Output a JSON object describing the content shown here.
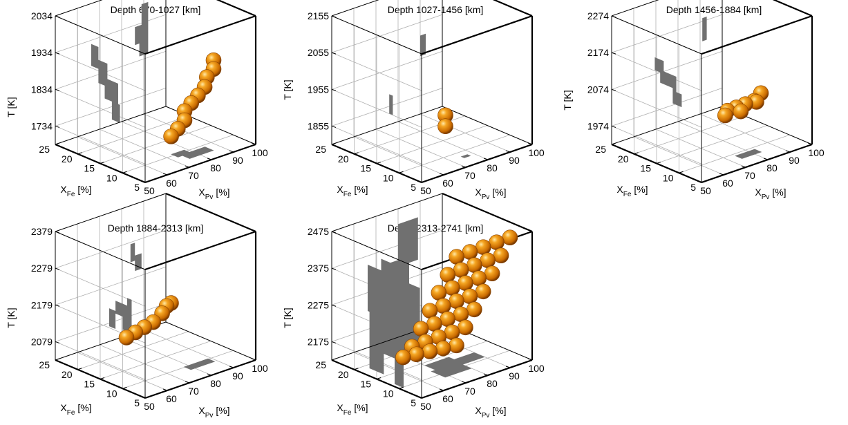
{
  "chart_data": [
    {
      "type": "scatter3d",
      "title": "Depth 670-1027 [km]",
      "zlabel": "T [K]",
      "ylabel": {
        "main": "X",
        "sub": "Fe",
        "unit": " [%]"
      },
      "xlabel": {
        "main": "X",
        "sub": "Pv",
        "unit": " [%]"
      },
      "xlim": [
        50,
        100
      ],
      "xticks": [
        50,
        60,
        70,
        80,
        90,
        100
      ],
      "ylim": [
        5,
        25
      ],
      "yticks": [
        5,
        10,
        15,
        20,
        25
      ],
      "zlim": [
        1684,
        2034
      ],
      "zticks": [
        1734,
        1834,
        1934,
        2034
      ],
      "grid": true,
      "marker_color": "#e08a10",
      "projection_color": "#707070",
      "points": [
        {
          "x": 85,
          "y": 7,
          "z": 1934
        },
        {
          "x": 85,
          "y": 7,
          "z": 1910
        },
        {
          "x": 84,
          "y": 8,
          "z": 1885
        },
        {
          "x": 83,
          "y": 8,
          "z": 1860
        },
        {
          "x": 82,
          "y": 9,
          "z": 1834
        },
        {
          "x": 81,
          "y": 10,
          "z": 1810
        },
        {
          "x": 80,
          "y": 11,
          "z": 1785
        },
        {
          "x": 80,
          "y": 11,
          "z": 1760
        },
        {
          "x": 79,
          "y": 12,
          "z": 1734
        },
        {
          "x": 78,
          "y": 13,
          "z": 1710
        }
      ]
    },
    {
      "type": "scatter3d",
      "title": "Depth 1027-1456 [km]",
      "zlabel": "T [K]",
      "ylabel": {
        "main": "X",
        "sub": "Fe",
        "unit": " [%]"
      },
      "xlabel": {
        "main": "X",
        "sub": "Pv",
        "unit": " [%]"
      },
      "xlim": [
        50,
        100
      ],
      "xticks": [
        50,
        60,
        70,
        80,
        90,
        100
      ],
      "ylim": [
        5,
        25
      ],
      "yticks": [
        5,
        10,
        15,
        20,
        25
      ],
      "zlim": [
        1805,
        2155
      ],
      "zticks": [
        1855,
        1955,
        2055,
        2155
      ],
      "grid": true,
      "marker_color": "#e08a10",
      "projection_color": "#707070",
      "points": [
        {
          "x": 75,
          "y": 12,
          "z": 1900
        },
        {
          "x": 75,
          "y": 12,
          "z": 1870
        }
      ]
    },
    {
      "type": "scatter3d",
      "title": "Depth 1456-1884 [km]",
      "zlabel": "T [K]",
      "ylabel": {
        "main": "X",
        "sub": "Fe",
        "unit": " [%]"
      },
      "xlabel": {
        "main": "X",
        "sub": "Pv",
        "unit": " [%]"
      },
      "xlim": [
        50,
        100
      ],
      "xticks": [
        50,
        60,
        70,
        80,
        90,
        100
      ],
      "ylim": [
        5,
        25
      ],
      "yticks": [
        5,
        10,
        15,
        20,
        25
      ],
      "zlim": [
        1924,
        2274
      ],
      "zticks": [
        1974,
        2074,
        2174,
        2274
      ],
      "grid": true,
      "marker_color": "#e08a10",
      "projection_color": "#707070",
      "points": [
        {
          "x": 85,
          "y": 9,
          "z": 2074
        },
        {
          "x": 84,
          "y": 10,
          "z": 2050
        },
        {
          "x": 82,
          "y": 11,
          "z": 2040
        },
        {
          "x": 80,
          "y": 12,
          "z": 2030
        },
        {
          "x": 78,
          "y": 13,
          "z": 2020
        },
        {
          "x": 85,
          "y": 10,
          "z": 2045
        },
        {
          "x": 82,
          "y": 12,
          "z": 2015
        },
        {
          "x": 79,
          "y": 14,
          "z": 2000
        }
      ]
    },
    {
      "type": "scatter3d",
      "title": "Depth 1884-2313 [km]",
      "zlabel": "T [K]",
      "ylabel": {
        "main": "X",
        "sub": "Fe",
        "unit": " [%]"
      },
      "xlabel": {
        "main": "X",
        "sub": "Pv",
        "unit": " [%]"
      },
      "xlim": [
        50,
        100
      ],
      "xticks": [
        50,
        60,
        70,
        80,
        90,
        100
      ],
      "ylim": [
        5,
        25
      ],
      "yticks": [
        5,
        10,
        15,
        20,
        25
      ],
      "zlim": [
        2029,
        2379
      ],
      "zticks": [
        2079,
        2179,
        2279,
        2379
      ],
      "grid": true,
      "marker_color": "#e08a10",
      "projection_color": "#707070",
      "points": [
        {
          "x": 80,
          "y": 14,
          "z": 2179
        },
        {
          "x": 78,
          "y": 14,
          "z": 2175
        },
        {
          "x": 78,
          "y": 15,
          "z": 2150
        },
        {
          "x": 76,
          "y": 16,
          "z": 2125
        },
        {
          "x": 74,
          "y": 17,
          "z": 2110
        },
        {
          "x": 72,
          "y": 18,
          "z": 2095
        },
        {
          "x": 70,
          "y": 19,
          "z": 2080
        }
      ]
    },
    {
      "type": "scatter3d",
      "title": "Depth 2313-2741 [km]",
      "zlabel": "T [K]",
      "ylabel": {
        "main": "X",
        "sub": "Fe",
        "unit": " [%]"
      },
      "xlabel": {
        "main": "X",
        "sub": "Pv",
        "unit": " [%]"
      },
      "xlim": [
        50,
        100
      ],
      "xticks": [
        50,
        60,
        70,
        80,
        90,
        100
      ],
      "ylim": [
        5,
        25
      ],
      "yticks": [
        5,
        10,
        15,
        20,
        25
      ],
      "zlim": [
        2125,
        2475
      ],
      "zticks": [
        2175,
        2275,
        2375,
        2475
      ],
      "grid": true,
      "marker_color": "#e08a10",
      "projection_color": "#707070",
      "points": [
        {
          "x": 92,
          "y": 6,
          "z": 2470
        },
        {
          "x": 88,
          "y": 7,
          "z": 2460
        },
        {
          "x": 84,
          "y": 8,
          "z": 2450
        },
        {
          "x": 80,
          "y": 9,
          "z": 2440
        },
        {
          "x": 76,
          "y": 10,
          "z": 2430
        },
        {
          "x": 90,
          "y": 7,
          "z": 2420
        },
        {
          "x": 86,
          "y": 8,
          "z": 2410
        },
        {
          "x": 82,
          "y": 9,
          "z": 2400
        },
        {
          "x": 78,
          "y": 10,
          "z": 2390
        },
        {
          "x": 74,
          "y": 11,
          "z": 2380
        },
        {
          "x": 88,
          "y": 8,
          "z": 2370
        },
        {
          "x": 84,
          "y": 9,
          "z": 2360
        },
        {
          "x": 80,
          "y": 10,
          "z": 2350
        },
        {
          "x": 76,
          "y": 11,
          "z": 2340
        },
        {
          "x": 72,
          "y": 12,
          "z": 2330
        },
        {
          "x": 86,
          "y": 9,
          "z": 2320
        },
        {
          "x": 82,
          "y": 10,
          "z": 2310
        },
        {
          "x": 78,
          "y": 11,
          "z": 2300
        },
        {
          "x": 74,
          "y": 12,
          "z": 2290
        },
        {
          "x": 70,
          "y": 13,
          "z": 2280
        },
        {
          "x": 84,
          "y": 10,
          "z": 2270
        },
        {
          "x": 80,
          "y": 11,
          "z": 2260
        },
        {
          "x": 76,
          "y": 12,
          "z": 2250
        },
        {
          "x": 72,
          "y": 13,
          "z": 2240
        },
        {
          "x": 68,
          "y": 14,
          "z": 2230
        },
        {
          "x": 82,
          "y": 11,
          "z": 2220
        },
        {
          "x": 78,
          "y": 12,
          "z": 2210
        },
        {
          "x": 74,
          "y": 13,
          "z": 2200
        },
        {
          "x": 70,
          "y": 14,
          "z": 2190
        },
        {
          "x": 66,
          "y": 15,
          "z": 2180
        },
        {
          "x": 80,
          "y": 12,
          "z": 2170
        },
        {
          "x": 76,
          "y": 13,
          "z": 2165
        },
        {
          "x": 72,
          "y": 14,
          "z": 2160
        },
        {
          "x": 68,
          "y": 15,
          "z": 2155
        },
        {
          "x": 64,
          "y": 16,
          "z": 2150
        }
      ]
    }
  ]
}
